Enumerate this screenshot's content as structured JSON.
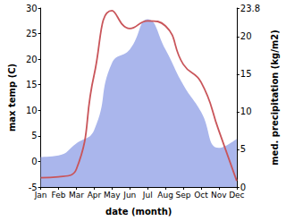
{
  "chart_data": {
    "type": "line",
    "x_label": "date (month)",
    "y_label": "max temp (C)",
    "y2_label": "med. precipitation (kg/m2)",
    "categories": [
      "Jan",
      "Feb",
      "Mar",
      "Apr",
      "May",
      "Jun",
      "Jul",
      "Aug",
      "Sep",
      "Oct",
      "Nov",
      "Dec"
    ],
    "series": [
      {
        "name": "med. precipitation",
        "type": "area",
        "axis": "y2",
        "color": "#aab6ec",
        "values": [
          4.0,
          4.2,
          5.8,
          7.6,
          16.5,
          18.3,
          22.3,
          18.3,
          13.6,
          10.0,
          5.2,
          6.4
        ]
      },
      {
        "name": "max temp",
        "type": "line",
        "color": "#c9555a",
        "values": [
          -3.2,
          -3.0,
          -1.5,
          17.0,
          29.5,
          26.0,
          27.5,
          26.5,
          19.0,
          15.5,
          6.0,
          -3.8
        ]
      }
    ],
    "ylim": [
      -5,
      30
    ],
    "yticks": [
      -5,
      0,
      5,
      10,
      15,
      20,
      25,
      30
    ],
    "y2lim": [
      0,
      23.8
    ],
    "y2ticks": [
      0,
      5,
      10,
      15,
      20
    ],
    "grid": false
  }
}
